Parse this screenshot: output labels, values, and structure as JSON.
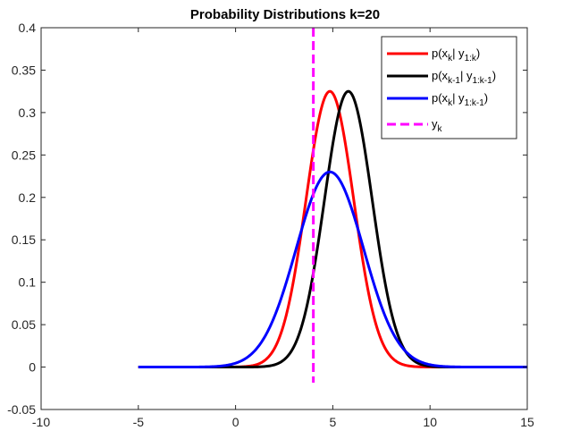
{
  "chart_data": {
    "type": "line",
    "title": "Probability Distributions k=20",
    "xlabel": "",
    "ylabel": "",
    "xlim": [
      -10,
      15
    ],
    "ylim": [
      -0.05,
      0.4
    ],
    "xticks": [
      "-10",
      "-5",
      "0",
      "5",
      "10",
      "15"
    ],
    "yticks": [
      "-0.05",
      "0",
      "0.05",
      "0.1",
      "0.15",
      "0.2",
      "0.25",
      "0.3",
      "0.35",
      "0.4"
    ],
    "grid": false,
    "legend_position": "top-right",
    "x_range": [
      -5,
      15
    ],
    "series": [
      {
        "legend_main": "p(x",
        "legend_parts": [
          {
            "t": "p(x",
            "sub": false
          },
          {
            "t": "k",
            "sub": true
          },
          {
            "t": "| y",
            "sub": false
          },
          {
            "t": "1:k",
            "sub": true
          },
          {
            "t": ")",
            "sub": false
          }
        ],
        "color": "#ff0000",
        "style": "solid",
        "distribution": "gaussian",
        "mean": 4.85,
        "peak": 0.325
      },
      {
        "legend_main": "p(x",
        "legend_parts": [
          {
            "t": "p(x",
            "sub": false
          },
          {
            "t": "k-1",
            "sub": true
          },
          {
            "t": "| y",
            "sub": false
          },
          {
            "t": "1:k-1",
            "sub": true
          },
          {
            "t": ")",
            "sub": false
          }
        ],
        "color": "#000000",
        "style": "solid",
        "distribution": "gaussian",
        "mean": 5.8,
        "peak": 0.325
      },
      {
        "legend_main": "p(x",
        "legend_parts": [
          {
            "t": "p(x",
            "sub": false
          },
          {
            "t": "k",
            "sub": true
          },
          {
            "t": "| y",
            "sub": false
          },
          {
            "t": "1:k-1",
            "sub": true
          },
          {
            "t": ")",
            "sub": false
          }
        ],
        "color": "#0000ff",
        "style": "solid",
        "distribution": "gaussian",
        "mean": 4.85,
        "peak": 0.23
      },
      {
        "legend_main": "y",
        "legend_parts": [
          {
            "t": "y",
            "sub": false
          },
          {
            "t": "k",
            "sub": true
          }
        ],
        "color": "#ff00ff",
        "style": "dashed",
        "distribution": "vertical-line",
        "x": 4
      }
    ]
  }
}
